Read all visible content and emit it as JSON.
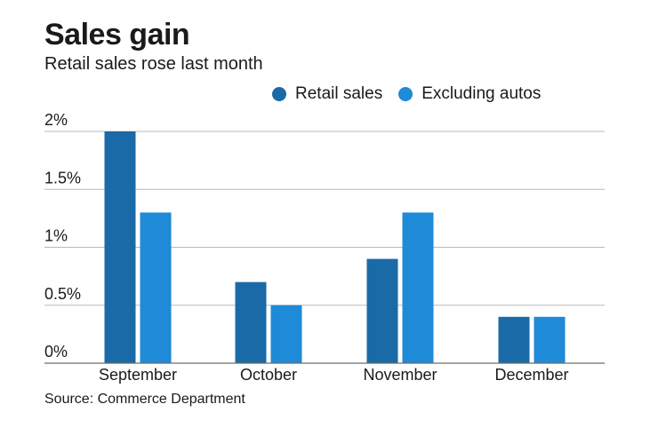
{
  "chart_data": {
    "type": "bar",
    "title": "Sales gain",
    "subtitle": "Retail sales rose last month",
    "categories": [
      "September",
      "October",
      "November",
      "December"
    ],
    "series": [
      {
        "name": "Retail sales",
        "values": [
          2.0,
          0.7,
          0.9,
          0.4
        ],
        "color": "#1a6aa8"
      },
      {
        "name": "Excluding autos",
        "values": [
          1.3,
          0.5,
          1.3,
          0.4
        ],
        "color": "#1e8ad8"
      }
    ],
    "ylim": [
      0,
      2
    ],
    "yticks": [
      0,
      0.5,
      1,
      1.5,
      2
    ],
    "ytick_labels": [
      "0%",
      "0.5%",
      "1%",
      "1.5%",
      "2%"
    ],
    "xlabel": "",
    "ylabel": "",
    "grid": true,
    "legend_position": "top",
    "source": "Source: Commerce Department"
  },
  "colors": {
    "grid": "#b9b9b9",
    "axis": "#6d6d6d",
    "text": "#1a1a1a"
  }
}
